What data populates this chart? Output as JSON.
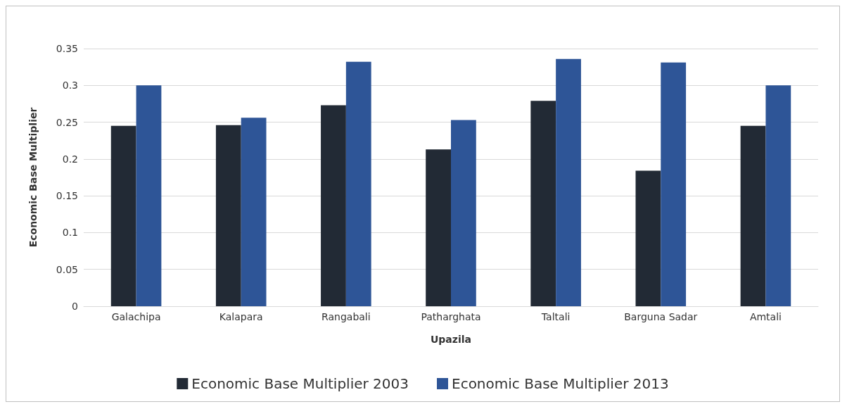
{
  "chart_data": {
    "type": "bar",
    "xlabel": "Upazila",
    "ylabel": "Economic Base Multiplier",
    "categories": [
      "Galachipa",
      "Kalapara",
      "Rangabali",
      "Patharghata",
      "Taltali",
      "Barguna Sadar",
      "Amtali"
    ],
    "series": [
      {
        "name": "Economic Base Multiplier 2003",
        "color": "#222a35",
        "values": [
          0.245,
          0.246,
          0.273,
          0.213,
          0.279,
          0.184,
          0.245
        ]
      },
      {
        "name": "Economic Base Multiplier 2013",
        "color": "#2e5597",
        "values": [
          0.3,
          0.256,
          0.332,
          0.253,
          0.336,
          0.331,
          0.3
        ]
      }
    ],
    "ylim": [
      0,
      0.35
    ],
    "yticks": [
      0,
      0.05,
      0.1,
      0.15,
      0.2,
      0.25,
      0.3,
      0.35
    ],
    "grid": "y",
    "legend": "bottom"
  }
}
